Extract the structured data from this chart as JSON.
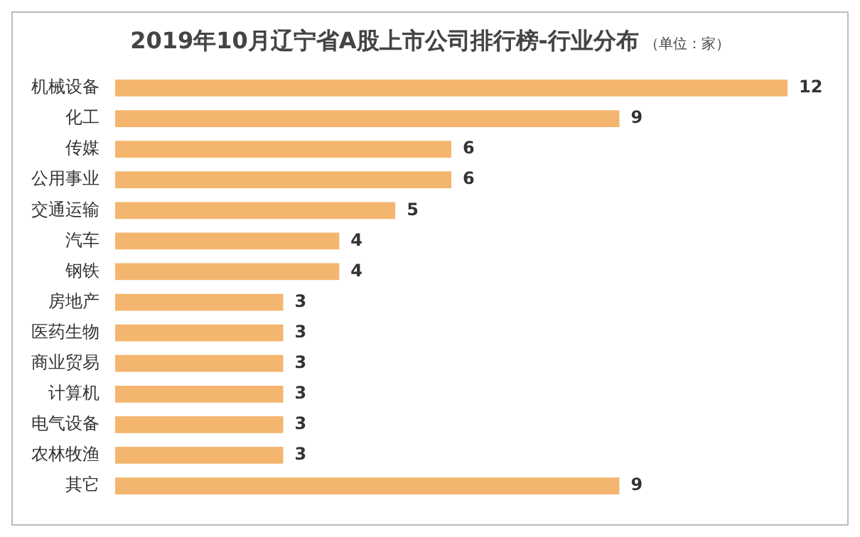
{
  "chart_data": {
    "type": "bar",
    "orientation": "horizontal",
    "title": "2019年10月辽宁省A股上市公司排行榜-行业分布",
    "subtitle": "（单位：家）",
    "categories": [
      "机械设备",
      "化工",
      "传媒",
      "公用事业",
      "交通运输",
      "汽车",
      "钢铁",
      "房地产",
      "医药生物",
      "商业贸易",
      "计算机",
      "电气设备",
      "农林牧渔",
      "其它"
    ],
    "values": [
      12,
      9,
      6,
      6,
      5,
      4,
      4,
      3,
      3,
      3,
      3,
      3,
      3,
      9
    ],
    "color": "#f4b66e",
    "data_labels": true,
    "tick_labels": "y",
    "legend": false
  }
}
